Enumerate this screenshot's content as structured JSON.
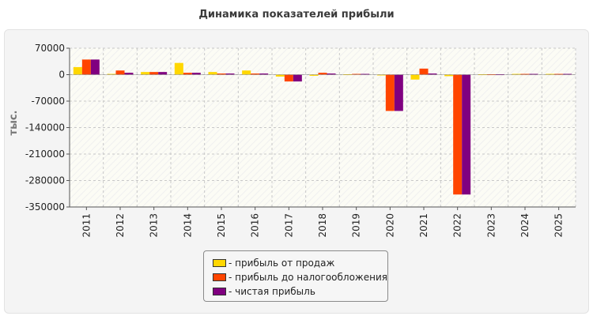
{
  "chart_data": {
    "type": "bar",
    "title": "Динамика показателей прибыли",
    "ylabel": "тыс.",
    "xlabel": "",
    "categories": [
      "2011",
      "2012",
      "2013",
      "2014",
      "2015",
      "2016",
      "2017",
      "2018",
      "2019",
      "2020",
      "2021",
      "2022",
      "2023",
      "2024",
      "2025"
    ],
    "ylim": [
      -350000,
      70000
    ],
    "yticks": [
      70000,
      0,
      -70000,
      -140000,
      -210000,
      -280000,
      -350000
    ],
    "grid": true,
    "legend_position": "bottom",
    "series": [
      {
        "name": "прибыль от продаж",
        "color": "#ffd700",
        "values": [
          20000,
          2000,
          7000,
          31000,
          7000,
          11000,
          -5000,
          -3000,
          1000,
          -1000,
          -13000,
          -4000,
          1000,
          2000,
          2000
        ]
      },
      {
        "name": "прибыль до налогообложения",
        "color": "#ff4500",
        "values": [
          40000,
          11000,
          7000,
          5000,
          3000,
          3000,
          -18000,
          5000,
          2000,
          -96000,
          16000,
          -317000,
          1000,
          2000,
          2000
        ]
      },
      {
        "name": "чистая прибыль",
        "color": "#800080",
        "values": [
          40000,
          5000,
          7000,
          5000,
          3000,
          3000,
          -18000,
          3000,
          2000,
          -96000,
          3000,
          -317000,
          1000,
          2000,
          2000
        ]
      }
    ]
  }
}
